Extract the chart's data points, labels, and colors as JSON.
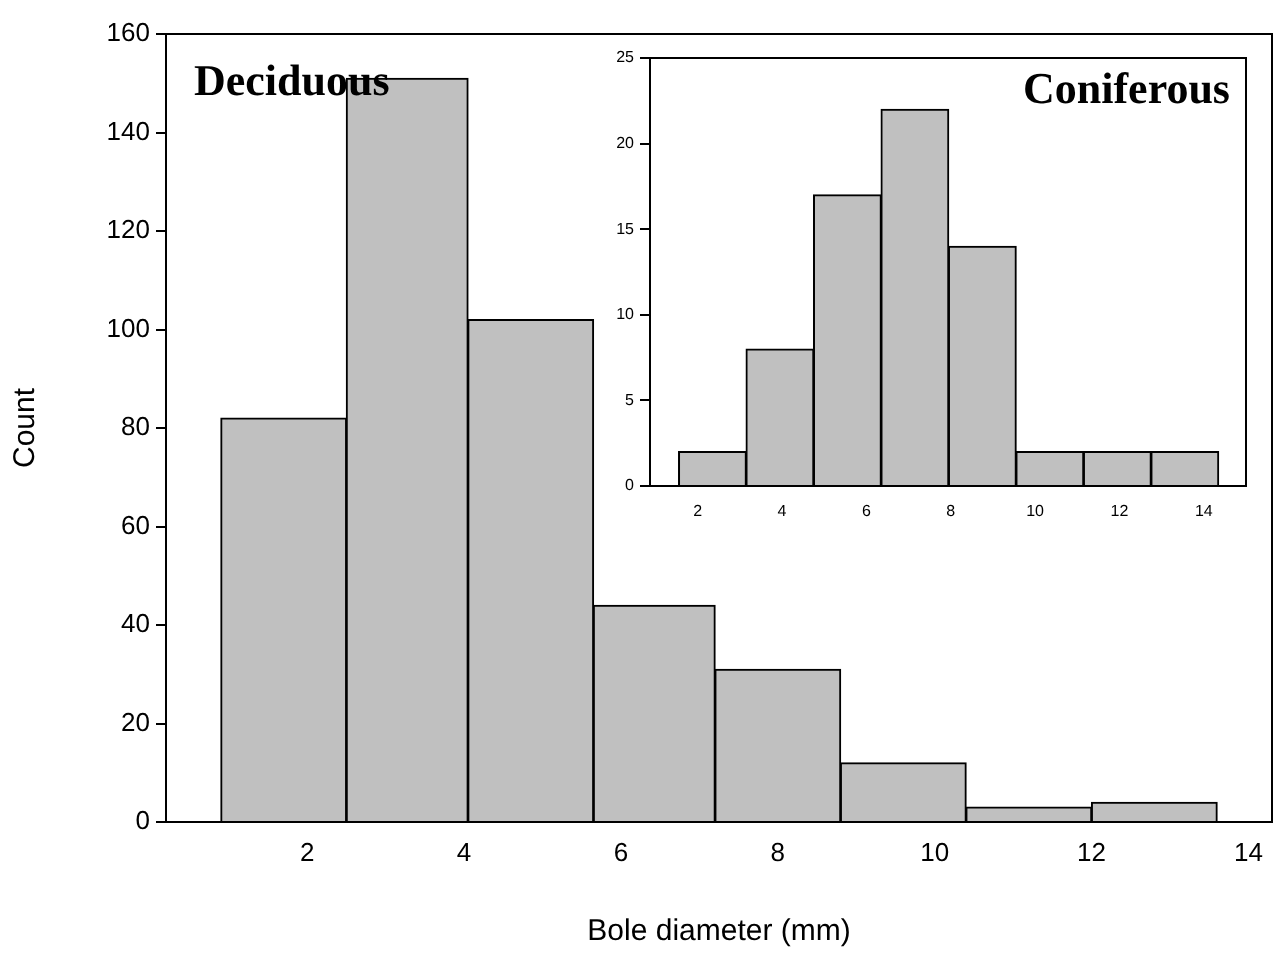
{
  "chart_data": [
    {
      "type": "histogram",
      "xlabel": "Bole diameter (mm)",
      "ylabel": "Count",
      "annotations": [
        "Deciduous"
      ],
      "bins": [
        0.9,
        2.5,
        4.05,
        5.65,
        7.2,
        8.8,
        10.4,
        12,
        13.6
      ],
      "values": [
        82,
        151,
        102,
        44,
        31,
        12,
        3,
        4
      ],
      "color": "#c0c0c0",
      "xlim": [
        0.2,
        14.3
      ],
      "xticks": [
        2,
        4,
        6,
        8,
        10,
        12,
        14
      ],
      "ylim": [
        0,
        160
      ],
      "yticks": [
        0,
        20,
        40,
        60,
        80,
        100,
        120,
        140,
        160
      ],
      "grid": false,
      "legend": false
    },
    {
      "type": "histogram",
      "annotations": [
        "Coniferous"
      ],
      "bins": [
        1.55,
        3.15,
        4.75,
        6.35,
        7.95,
        9.55,
        11.15,
        12.75,
        14.35
      ],
      "values": [
        2,
        8,
        17,
        22,
        14,
        2,
        2,
        2
      ],
      "color": "#c0c0c0",
      "xlim": [
        0.87,
        15
      ],
      "xticks": [
        2,
        4,
        6,
        8,
        10,
        12,
        14
      ],
      "ylim": [
        0,
        25
      ],
      "yticks": [
        0,
        5,
        10,
        15,
        20,
        25
      ],
      "grid": false,
      "legend": false
    }
  ]
}
